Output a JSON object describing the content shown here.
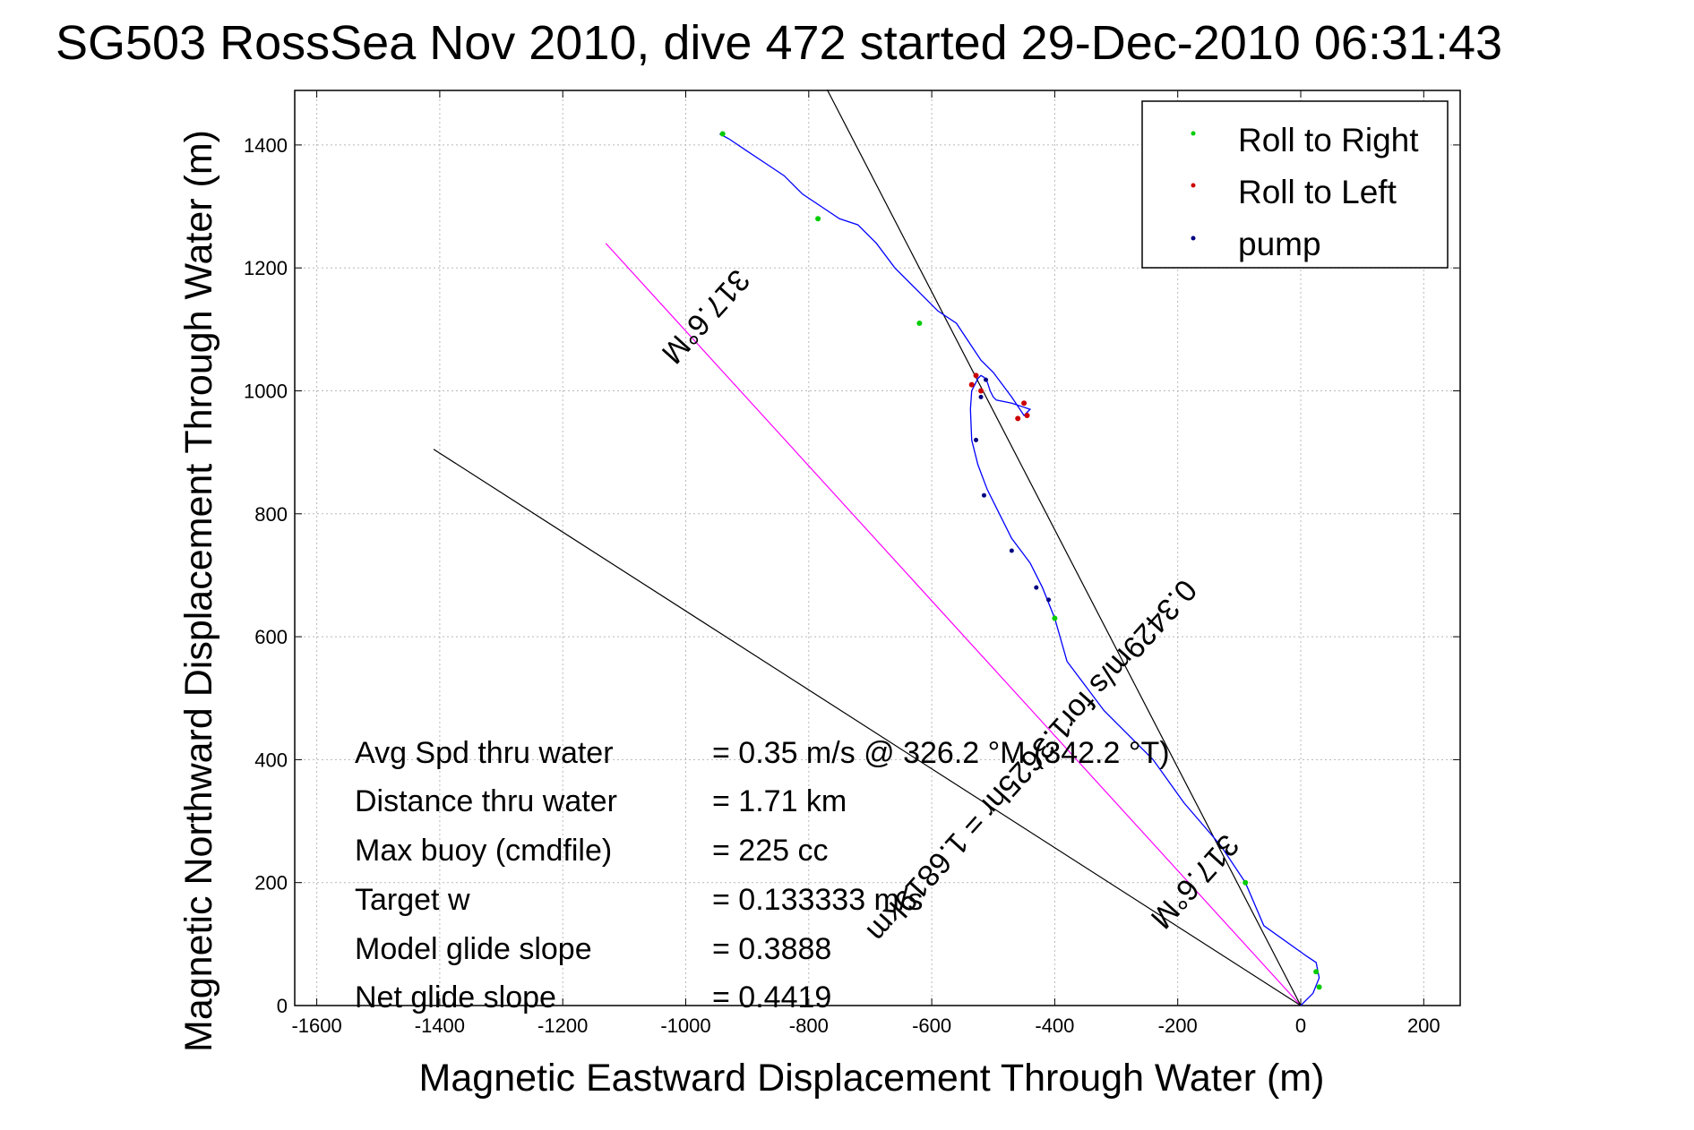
{
  "chart_data": {
    "type": "line",
    "title": "SG503 RossSea Nov 2010, dive 472 started 29-Dec-2010 06:31:43",
    "xlabel": "Magnetic Eastward Displacement Through Water (m)",
    "ylabel": "Magnetic Northward Displacement Through Water (m)",
    "xlim": [
      -1600,
      200
    ],
    "ylim": [
      0,
      1400
    ],
    "xticks": [
      -1600,
      -1400,
      -1200,
      -1000,
      -800,
      -600,
      -400,
      -200,
      0,
      200
    ],
    "yticks": [
      0,
      200,
      400,
      600,
      800,
      1000,
      1200,
      1400
    ],
    "grid": true,
    "legend_position": "top-right",
    "legend": [
      {
        "label": "Roll to Right",
        "color": "#00cc00"
      },
      {
        "label": "Roll to Left",
        "color": "#cc0000"
      },
      {
        "label": "pump",
        "color": "#000080"
      }
    ],
    "track": {
      "color": "#0000ff",
      "x": [
        0,
        20,
        30,
        25,
        10,
        -60,
        -90,
        -130,
        -190,
        -240,
        -290,
        -320,
        -350,
        -380,
        -400,
        -420,
        -440,
        -470,
        -490,
        -510,
        -525,
        -535,
        -537,
        -535,
        -530,
        -525,
        -520,
        -515,
        -510,
        -505,
        -500,
        -495,
        -470,
        -440,
        -450,
        -470,
        -500,
        -520,
        -540,
        -560,
        -590,
        -620,
        -660,
        -690,
        -720,
        -750,
        -780,
        -810,
        -840,
        -870,
        -900,
        -930,
        -945
      ],
      "y": [
        0,
        20,
        45,
        70,
        80,
        130,
        200,
        260,
        330,
        400,
        450,
        480,
        520,
        560,
        630,
        680,
        720,
        760,
        800,
        840,
        880,
        920,
        970,
        1000,
        1010,
        1020,
        1025,
        1022,
        1015,
        1000,
        990,
        985,
        980,
        970,
        960,
        990,
        1030,
        1050,
        1080,
        1110,
        1130,
        1160,
        1200,
        1240,
        1270,
        1280,
        1300,
        1320,
        1350,
        1370,
        1390,
        1410,
        1418
      ]
    },
    "roll_right_points": [
      {
        "x": 30,
        "y": 30
      },
      {
        "x": 25,
        "y": 55
      },
      {
        "x": -90,
        "y": 200
      },
      {
        "x": -400,
        "y": 630
      },
      {
        "x": -620,
        "y": 1110
      },
      {
        "x": -785,
        "y": 1280
      },
      {
        "x": -940,
        "y": 1418
      }
    ],
    "roll_left_points": [
      {
        "x": -535,
        "y": 1010
      },
      {
        "x": -528,
        "y": 1025
      },
      {
        "x": -520,
        "y": 1000
      },
      {
        "x": -450,
        "y": 980
      },
      {
        "x": -445,
        "y": 960
      },
      {
        "x": -460,
        "y": 955
      }
    ],
    "pump_points": [
      {
        "x": -512,
        "y": 1018
      },
      {
        "x": -520,
        "y": 990
      },
      {
        "x": -528,
        "y": 920
      },
      {
        "x": -515,
        "y": 830
      },
      {
        "x": -470,
        "y": 740
      },
      {
        "x": -430,
        "y": 680
      },
      {
        "x": -410,
        "y": 660
      }
    ],
    "reference_lines": [
      {
        "name": "heading-line",
        "color": "#ff00ff",
        "x": [
          0,
          -1130
        ],
        "y": [
          0,
          1240
        ]
      },
      {
        "name": "black-line-1",
        "color": "#000000",
        "x": [
          0,
          -1410
        ],
        "y": [
          0,
          905
        ]
      },
      {
        "name": "black-line-2",
        "color": "#000000",
        "x": [
          0,
          -770
        ],
        "y": [
          0,
          1490
        ]
      }
    ],
    "annotations": {
      "heading_near_end": "317.6°M",
      "heading_near_origin": "317.6°M",
      "drift": "0.3429m/s for1.3625hr = 1.6819km"
    },
    "stats": [
      {
        "label": "Avg Spd thru water",
        "value": "=  0.35 m/s @ 326.2 °M (342.2 °T)"
      },
      {
        "label": "Distance thru water",
        "value": "=  1.71 km"
      },
      {
        "label": "Max buoy (cmdfile)",
        "value": "= 225 cc"
      },
      {
        "label": "Target w",
        "value": "= 0.133333 m/s"
      },
      {
        "label": "Model glide slope",
        "value": "= 0.3888"
      },
      {
        "label": "Net glide slope",
        "value": "= 0.4419"
      }
    ]
  }
}
